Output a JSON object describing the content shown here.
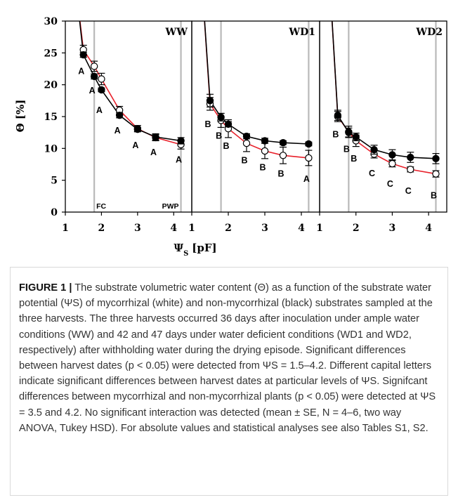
{
  "chart_data": {
    "type": "line",
    "y_axis": {
      "label_main": "Θ [%]",
      "ylim": [
        0,
        30
      ],
      "ticks": [
        "0",
        "5",
        "10",
        "15",
        "20",
        "25",
        "30"
      ]
    },
    "x_axis": {
      "label_main": "Ψ",
      "label_sub": "S",
      "label_unit": "[pF]",
      "xlim": [
        1,
        4.5
      ],
      "ticks": [
        "1",
        "2",
        "3",
        "4"
      ]
    },
    "reference_lines": {
      "FC": 1.8,
      "PWP": 4.2
    },
    "panels": [
      {
        "title": "WW",
        "markers": [
          "FC",
          "PWP"
        ],
        "series": [
          {
            "marker": "open",
            "color": "#e8202a",
            "x": [
              1.5,
              1.8,
              2.0,
              2.5,
              3.0,
              3.5,
              4.2
            ],
            "y": [
              25.5,
              22.9,
              20.9,
              16.0,
              13.1,
              11.7,
              10.6
            ],
            "err": [
              0.7,
              0.8,
              0.9,
              0.6,
              0.5,
              0.5,
              0.7
            ]
          },
          {
            "marker": "filled",
            "color": "#000000",
            "x": [
              1.5,
              1.8,
              2.0,
              2.5,
              3.0,
              3.5,
              4.2
            ],
            "y": [
              24.7,
              21.3,
              19.2,
              15.2,
              13.0,
              11.8,
              11.2
            ],
            "err": [
              0.4,
              0.4,
              0.3,
              0.4,
              0.3,
              0.5,
              0.5
            ]
          }
        ],
        "letters": [
          {
            "text": "A",
            "x": 1.5,
            "y": 22.2
          },
          {
            "text": "A",
            "x": 1.8,
            "y": 19.2
          },
          {
            "text": "A",
            "x": 2.0,
            "y": 16.1
          },
          {
            "text": "A",
            "x": 2.5,
            "y": 12.9
          },
          {
            "text": "A",
            "x": 3.0,
            "y": 10.6
          },
          {
            "text": "A",
            "x": 3.5,
            "y": 9.5
          },
          {
            "text": "A",
            "x": 4.2,
            "y": 8.3
          }
        ]
      },
      {
        "title": "WD1",
        "markers": [],
        "series": [
          {
            "marker": "open",
            "color": "#e8202a",
            "x": [
              1.5,
              1.8,
              2.0,
              2.5,
              3.0,
              3.5,
              4.2
            ],
            "y": [
              17.0,
              14.4,
              13.1,
              10.8,
              9.6,
              8.9,
              8.5
            ],
            "err": [
              1.0,
              1.1,
              1.4,
              1.3,
              1.2,
              1.3,
              1.2
            ]
          },
          {
            "marker": "filled",
            "color": "#000000",
            "x": [
              1.5,
              1.8,
              2.0,
              2.5,
              3.0,
              3.5,
              4.2
            ],
            "y": [
              17.5,
              14.9,
              13.8,
              11.9,
              11.2,
              10.9,
              10.7
            ],
            "err": [
              1.0,
              0.6,
              0.4,
              0.4,
              0.4,
              0.3,
              0.3
            ]
          }
        ],
        "letters": [
          {
            "text": "B",
            "x": 1.5,
            "y": 13.9
          },
          {
            "text": "B",
            "x": 1.8,
            "y": 12.1
          },
          {
            "text": "B",
            "x": 2.0,
            "y": 10.5
          },
          {
            "text": "B",
            "x": 2.5,
            "y": 8.2
          },
          {
            "text": "B",
            "x": 3.0,
            "y": 7.1
          },
          {
            "text": "B",
            "x": 3.5,
            "y": 6.1
          },
          {
            "text": "A",
            "x": 4.2,
            "y": 5.3
          }
        ]
      },
      {
        "title": "WD2",
        "markers": [],
        "series": [
          {
            "marker": "open",
            "color": "#e8202a",
            "x": [
              1.5,
              1.8,
              2.0,
              2.5,
              3.0,
              3.5,
              4.2
            ],
            "y": [
              15.0,
              12.6,
              11.2,
              9.1,
              7.6,
              6.7,
              6.0
            ],
            "err": [
              0.8,
              0.9,
              0.9,
              0.6,
              0.5,
              0.4,
              0.5
            ]
          },
          {
            "marker": "filled",
            "color": "#000000",
            "x": [
              1.5,
              1.8,
              2.0,
              2.5,
              3.0,
              3.5,
              4.2
            ],
            "y": [
              15.2,
              12.5,
              11.8,
              9.8,
              9.0,
              8.6,
              8.4
            ],
            "err": [
              0.8,
              0.7,
              0.6,
              0.7,
              0.8,
              0.8,
              0.8
            ]
          }
        ],
        "letters": [
          {
            "text": "B",
            "x": 1.5,
            "y": 12.3
          },
          {
            "text": "B",
            "x": 1.8,
            "y": 10.0
          },
          {
            "text": "B",
            "x": 2.0,
            "y": 8.5
          },
          {
            "text": "C",
            "x": 2.5,
            "y": 6.2
          },
          {
            "text": "C",
            "x": 3.0,
            "y": 4.5
          },
          {
            "text": "C",
            "x": 3.5,
            "y": 3.4
          },
          {
            "text": "B",
            "x": 4.2,
            "y": 2.7
          }
        ]
      }
    ]
  },
  "caption": {
    "label": "FIGURE 1 |",
    "text": " The substrate volumetric water content (Θ) as a function of the substrate water potential (ΨS) of mycorrhizal (white) and non-mycorrhizal (black) substrates sampled at the three harvests. The three harvests occurred 36 days after inoculation under ample water conditions (WW) and 42 and 47 days under water deficient conditions (WD1 and WD2, respectively) after withholding water during the drying episode. Significant differences between harvest dates (p < 0.05) were detected from ΨS = 1.5–4.2. Different capital letters indicate significant differences between harvest dates at particular levels of ΨS. Signifcant differences between mycorrhizal and non-mycorrhizal plants (p < 0.05) were detected at ΨS = 3.5 and 4.2. No significant interaction was detected (mean ± SE, N = 4–6, two way ANOVA, Tukey HSD). For absolute values and statistical analyses see also Tables S1, S2."
  }
}
